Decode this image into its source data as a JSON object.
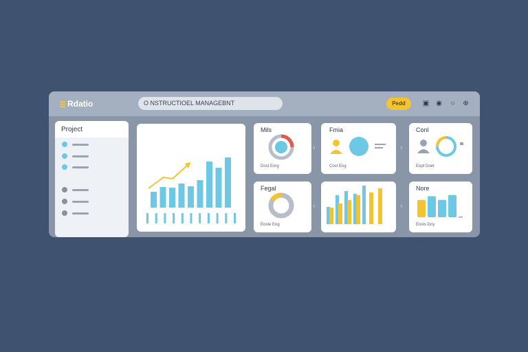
{
  "app": {
    "name": "Rdatio",
    "search_value": "O NSTRUCTIOEL MANAGEBNT",
    "action_button": "Pedd",
    "icons": [
      "bookmark-icon",
      "help-icon",
      "search-icon",
      "globe-icon"
    ]
  },
  "sidebar": {
    "title": "Project",
    "items": [
      {
        "status": "active"
      },
      {
        "status": "active"
      },
      {
        "status": "active"
      },
      {
        "status": "inactive"
      },
      {
        "status": "inactive"
      },
      {
        "status": "inactive"
      }
    ]
  },
  "cards": [
    {
      "title": "Mils",
      "caption": "Dost Eorg"
    },
    {
      "title": "Fmia",
      "caption": "Cost Eng"
    },
    {
      "title": "Conl",
      "caption": "Eopt Doet"
    },
    {
      "title": "Fegal",
      "caption": "Eoste Eng"
    },
    {
      "title": "",
      "caption": ""
    },
    {
      "title": "Nore",
      "caption": "Eosts Dny"
    }
  ],
  "colors": {
    "accent": "#f4c430",
    "blue": "#6cc8e4",
    "gray": "#b8bec8",
    "red": "#e05a4a"
  },
  "chart_data": [
    {
      "type": "bar",
      "values": [
        23,
        30,
        29,
        35,
        31,
        40,
        67,
        58,
        73
      ],
      "trend_line": [
        [
          0,
          28
        ],
        [
          1.6,
          44
        ],
        [
          2.6,
          42
        ],
        [
          4.2,
          62
        ]
      ]
    },
    {
      "type": "bar",
      "series": [
        {
          "color": "#6cc8e4",
          "values": [
            25,
            42,
            48,
            44,
            56
          ]
        },
        {
          "color": "#f4c430",
          "values": [
            24,
            30,
            35,
            42,
            46,
            52
          ]
        }
      ]
    },
    {
      "type": "bar",
      "values": [
        28,
        34,
        28,
        36,
        48
      ]
    }
  ]
}
